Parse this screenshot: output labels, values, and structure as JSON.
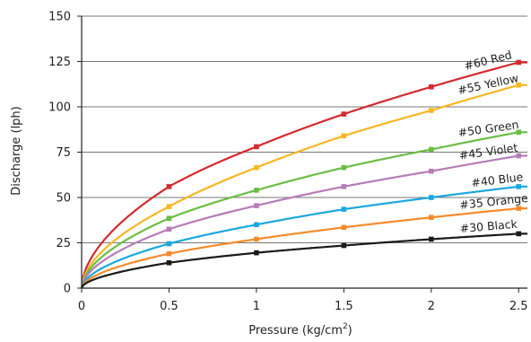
{
  "chart_data": {
    "type": "line",
    "xlabel": "Pressure (kg/cm",
    "xlabel_sup": "2",
    "xlabel_close": ")",
    "ylabel": "Discharge (lph)",
    "xlim": [
      0,
      2.55
    ],
    "ylim": [
      0,
      150
    ],
    "x_ticks": [
      0,
      0.5,
      1,
      1.5,
      2,
      2.5
    ],
    "x_tick_labels": [
      "0",
      "0.5",
      "1",
      "1.5",
      "2",
      "2.5"
    ],
    "y_ticks": [
      0,
      25,
      50,
      75,
      100,
      125,
      150
    ],
    "y_tick_labels": [
      "0",
      "25",
      "50",
      "75",
      "100",
      "125",
      "150"
    ],
    "grid": "horizontal",
    "x": [
      0.5,
      1,
      1.5,
      2,
      2.5
    ],
    "series": [
      {
        "name": "#60 Red",
        "color": "#d42a2e",
        "values": [
          56,
          78,
          96,
          111,
          124.5
        ]
      },
      {
        "name": "#55 Yellow",
        "color": "#f7b723",
        "values": [
          45,
          66.5,
          84,
          98,
          112
        ]
      },
      {
        "name": "#50 Green",
        "color": "#6bbd45",
        "values": [
          38.5,
          54,
          66.5,
          76.5,
          86
        ]
      },
      {
        "name": "#45 Violet",
        "color": "#b67cb8",
        "values": [
          32.5,
          45.5,
          56,
          64.5,
          73
        ]
      },
      {
        "name": "#40 Blue",
        "color": "#1ba7df",
        "values": [
          24.5,
          35,
          43.5,
          50,
          56
        ]
      },
      {
        "name": "#35 Orange",
        "color": "#f58b2a",
        "values": [
          19,
          27,
          33.5,
          39,
          44
        ]
      },
      {
        "name": "#30 Black",
        "color": "#1a1a1a",
        "values": [
          14,
          19.5,
          23.5,
          27,
          30
        ]
      }
    ]
  }
}
